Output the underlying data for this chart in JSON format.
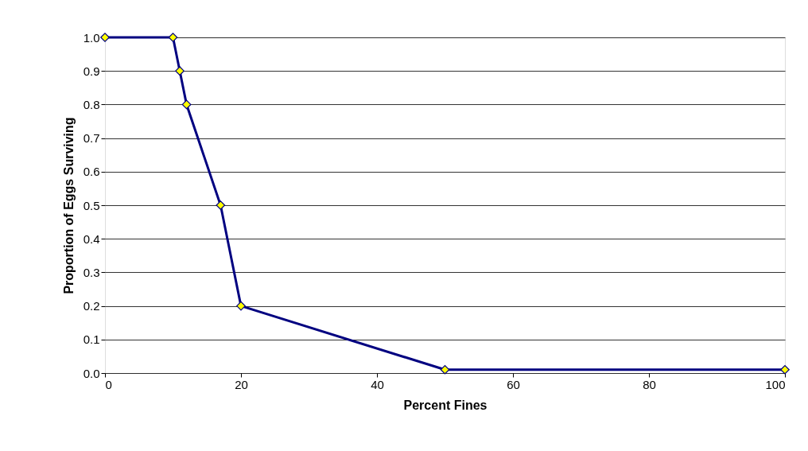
{
  "chart_data": {
    "type": "line",
    "xlabel": "Percent Fines",
    "ylabel": "Proportion of Eggs Surviving",
    "x": [
      0,
      10,
      11,
      12,
      17,
      20,
      50,
      100
    ],
    "series": [
      {
        "color": "#000080",
        "values": [
          1.0,
          1.0,
          0.9,
          0.8,
          0.5,
          0.2,
          0.01,
          0.01
        ]
      }
    ],
    "xlim": [
      0,
      100
    ],
    "xticks": [
      0,
      20,
      40,
      60,
      80,
      100
    ],
    "ylim": [
      0,
      1
    ],
    "yticks": [
      {
        "value": 0,
        "label": "0.0"
      },
      {
        "value": 0.1,
        "label": "0.1"
      },
      {
        "value": 0.2,
        "label": "0.2"
      },
      {
        "value": 0.3,
        "label": "0.3"
      },
      {
        "value": 0.4,
        "label": "0.4"
      },
      {
        "value": 0.5,
        "label": "0.5"
      },
      {
        "value": 0.6,
        "label": "0.6"
      },
      {
        "value": 0.7,
        "label": "0.7"
      },
      {
        "value": 0.8,
        "label": "0.8"
      },
      {
        "value": 0.9,
        "label": "0.9"
      },
      {
        "value": 1,
        "label": "1.0"
      }
    ],
    "grid": "y",
    "marker": "diamond",
    "line_style": "solid"
  }
}
